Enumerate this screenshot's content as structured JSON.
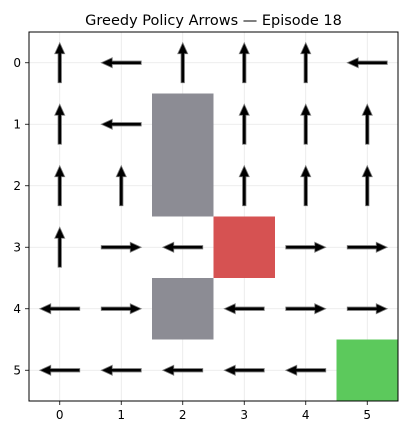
{
  "chart_data": {
    "type": "quiver",
    "title": "Greedy Policy Arrows — Episode 18",
    "xlabel": "",
    "ylabel": "",
    "xlim": [
      -0.5,
      5.5
    ],
    "ylim": [
      5.5,
      -0.5
    ],
    "y_inverted": true,
    "grid": true,
    "x_ticks": [
      0,
      1,
      2,
      3,
      4,
      5
    ],
    "y_ticks": [
      0,
      1,
      2,
      3,
      4,
      5
    ],
    "tick_labels_x": [
      "0",
      "1",
      "2",
      "3",
      "4",
      "5"
    ],
    "tick_labels_y": [
      "0",
      "1",
      "2",
      "3",
      "4",
      "5"
    ],
    "blocked_cells": [
      [
        2,
        1
      ],
      [
        2,
        2
      ],
      [
        2,
        4
      ]
    ],
    "goal_cell": [
      5,
      5
    ],
    "trap_cell": [
      3,
      3
    ],
    "colors": {
      "blocked": "#8c8c94",
      "goal": "#5cc95c",
      "trap": "#d65252",
      "arrow": "#000000",
      "grid": "#e6e6e6"
    },
    "arrows": [
      {
        "x": 0,
        "y": 0,
        "dir": "up"
      },
      {
        "x": 1,
        "y": 0,
        "dir": "left"
      },
      {
        "x": 2,
        "y": 0,
        "dir": "up"
      },
      {
        "x": 3,
        "y": 0,
        "dir": "up"
      },
      {
        "x": 4,
        "y": 0,
        "dir": "up"
      },
      {
        "x": 5,
        "y": 0,
        "dir": "left"
      },
      {
        "x": 0,
        "y": 1,
        "dir": "up"
      },
      {
        "x": 1,
        "y": 1,
        "dir": "left"
      },
      {
        "x": 3,
        "y": 1,
        "dir": "up"
      },
      {
        "x": 4,
        "y": 1,
        "dir": "up"
      },
      {
        "x": 5,
        "y": 1,
        "dir": "up"
      },
      {
        "x": 0,
        "y": 2,
        "dir": "up"
      },
      {
        "x": 1,
        "y": 2,
        "dir": "up"
      },
      {
        "x": 3,
        "y": 2,
        "dir": "up"
      },
      {
        "x": 4,
        "y": 2,
        "dir": "up"
      },
      {
        "x": 5,
        "y": 2,
        "dir": "up"
      },
      {
        "x": 0,
        "y": 3,
        "dir": "up"
      },
      {
        "x": 1,
        "y": 3,
        "dir": "right"
      },
      {
        "x": 2,
        "y": 3,
        "dir": "left"
      },
      {
        "x": 4,
        "y": 3,
        "dir": "right"
      },
      {
        "x": 5,
        "y": 3,
        "dir": "right"
      },
      {
        "x": 0,
        "y": 4,
        "dir": "left"
      },
      {
        "x": 1,
        "y": 4,
        "dir": "right"
      },
      {
        "x": 3,
        "y": 4,
        "dir": "left"
      },
      {
        "x": 4,
        "y": 4,
        "dir": "right"
      },
      {
        "x": 5,
        "y": 4,
        "dir": "right"
      },
      {
        "x": 0,
        "y": 5,
        "dir": "left"
      },
      {
        "x": 1,
        "y": 5,
        "dir": "left"
      },
      {
        "x": 2,
        "y": 5,
        "dir": "left"
      },
      {
        "x": 3,
        "y": 5,
        "dir": "left"
      },
      {
        "x": 4,
        "y": 5,
        "dir": "left"
      }
    ]
  }
}
